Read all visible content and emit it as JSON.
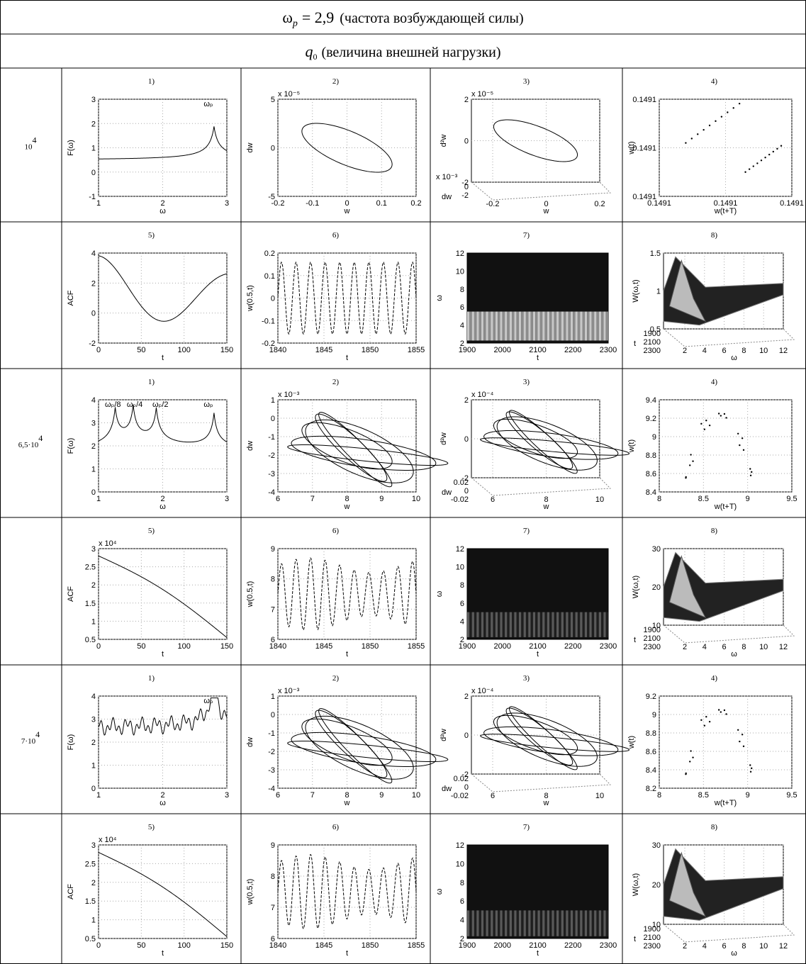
{
  "header": {
    "title": {
      "symbol": "ω",
      "sub": "p",
      "value": "= 2,9",
      "text": "(частота возбуждающей силы)"
    },
    "subtitle": {
      "symbol": "q",
      "sub": "0",
      "text": "(величина внешней нагрузки)"
    }
  },
  "rows": [
    {
      "load": {
        "base": "10",
        "exp": "4"
      },
      "panels": [
        {
          "label": "1)",
          "ylabel": "F(ω)",
          "xlabel": "ω",
          "yticks": [
            "-1",
            "0",
            "1",
            "2",
            "3"
          ],
          "xticks": [
            "1",
            "2",
            "3"
          ],
          "annotations": [
            "ωₚ"
          ]
        },
        {
          "label": "2)",
          "ylabel": "dw",
          "xlabel": "w",
          "exponent": "x 10⁻⁵",
          "yticks": [
            "-5",
            "0",
            "5"
          ],
          "xticks": [
            "-0.2",
            "-0.1",
            "0",
            "0.1",
            "0.2"
          ]
        },
        {
          "label": "3)",
          "ylabel": "d²w",
          "exponent": "x 10⁻⁵",
          "yticks": [
            "-2",
            "0",
            "2"
          ],
          "depthlabel": "dw",
          "depthexponent": "x 10⁻³",
          "depthticks": [
            "0",
            "-2"
          ],
          "xlabel": "w",
          "xticks": [
            "-0.2",
            "0",
            "0.2"
          ]
        },
        {
          "label": "4)",
          "ylabel": "w(t)",
          "xlabel": "w(t+T)",
          "yticks": [
            "0.1491",
            "0.1491",
            "0.1491"
          ],
          "xticks": [
            "0.1491",
            "0.1491",
            "0.1491"
          ]
        }
      ]
    },
    {
      "panels": [
        {
          "label": "5)",
          "ylabel": "ACF",
          "xlabel": "t",
          "yticks": [
            "-2",
            "0",
            "2",
            "4"
          ],
          "xticks": [
            "0",
            "50",
            "100",
            "150"
          ]
        },
        {
          "label": "6)",
          "ylabel": "w(0.5,t)",
          "xlabel": "t",
          "yticks": [
            "-0.2",
            "-0.1",
            "0",
            "0.1",
            "0.2"
          ],
          "xticks": [
            "1840",
            "1845",
            "1850",
            "1855"
          ]
        },
        {
          "label": "7)",
          "ylabel": "ω",
          "xlabel": "t",
          "yticks": [
            "2",
            "4",
            "6",
            "8",
            "10",
            "12"
          ],
          "xticks": [
            "1900",
            "2000",
            "2100",
            "2200",
            "2300"
          ]
        },
        {
          "label": "8)",
          "ylabel": "W(ω,t)",
          "yticks": [
            "0.5",
            "1",
            "1.5"
          ],
          "depthlabel": "t",
          "depthticks": [
            "1900",
            "2100",
            "2300"
          ],
          "xlabel": "ω",
          "xticks": [
            "2",
            "4",
            "6",
            "8",
            "10",
            "12"
          ]
        }
      ]
    },
    {
      "load": {
        "base": "6,5·10",
        "exp": "4"
      },
      "panels": [
        {
          "label": "1)",
          "ylabel": "F(ω)",
          "xlabel": "ω",
          "yticks": [
            "0",
            "1",
            "2",
            "3",
            "4"
          ],
          "xticks": [
            "1",
            "2",
            "3"
          ],
          "annotations": [
            "ωₚ/8",
            "ωₚ/4",
            "ωₚ/2",
            "ωₚ"
          ]
        },
        {
          "label": "2)",
          "ylabel": "dw",
          "xlabel": "w",
          "exponent": "x 10⁻³",
          "yticks": [
            "-4",
            "-3",
            "-2",
            "-1",
            "0",
            "1"
          ],
          "xticks": [
            "6",
            "7",
            "8",
            "9",
            "10"
          ]
        },
        {
          "label": "3)",
          "ylabel": "d²w",
          "exponent": "x 10⁻⁴",
          "yticks": [
            "-2",
            "0",
            "2"
          ],
          "depthlabel": "dw",
          "depthticks": [
            "0.02",
            "0",
            "-0.02"
          ],
          "xlabel": "w",
          "xticks": [
            "6",
            "8",
            "10"
          ]
        },
        {
          "label": "4)",
          "ylabel": "w(t)",
          "xlabel": "w(t+T)",
          "yticks": [
            "8.4",
            "8.6",
            "8.8",
            "9",
            "9.2",
            "9.4"
          ],
          "xticks": [
            "8",
            "8.5",
            "9",
            "9.5"
          ]
        }
      ]
    },
    {
      "panels": [
        {
          "label": "5)",
          "ylabel": "ACF",
          "xlabel": "t",
          "exponent": "x 10⁴",
          "yticks": [
            "0.5",
            "1",
            "1.5",
            "2",
            "2.5",
            "3"
          ],
          "xticks": [
            "0",
            "50",
            "100",
            "150"
          ]
        },
        {
          "label": "6)",
          "ylabel": "w(0.5,t)",
          "xlabel": "t",
          "yticks": [
            "6",
            "7",
            "8",
            "9"
          ],
          "xticks": [
            "1840",
            "1845",
            "1850",
            "1855"
          ]
        },
        {
          "label": "7)",
          "ylabel": "ω",
          "xlabel": "t",
          "yticks": [
            "2",
            "4",
            "6",
            "8",
            "10",
            "12"
          ],
          "xticks": [
            "1900",
            "2000",
            "2100",
            "2200",
            "2300"
          ]
        },
        {
          "label": "8)",
          "ylabel": "W(ω,t)",
          "yticks": [
            "10",
            "20",
            "30"
          ],
          "depthlabel": "t",
          "depthticks": [
            "1900",
            "2100",
            "2300"
          ],
          "xlabel": "ω",
          "xticks": [
            "2",
            "4",
            "6",
            "8",
            "10",
            "12"
          ]
        }
      ]
    },
    {
      "load": {
        "base": "7·10",
        "exp": "4"
      },
      "panels": [
        {
          "label": "1)",
          "ylabel": "F(ω)",
          "xlabel": "ω",
          "yticks": [
            "0",
            "1",
            "2",
            "3",
            "4"
          ],
          "xticks": [
            "1",
            "2",
            "3"
          ],
          "annotations": [
            "ωₚ"
          ]
        },
        {
          "label": "2)",
          "ylabel": "dw",
          "xlabel": "w",
          "exponent": "x 10⁻³",
          "yticks": [
            "-4",
            "-3",
            "-2",
            "-1",
            "0",
            "1"
          ],
          "xticks": [
            "6",
            "7",
            "8",
            "9",
            "10"
          ]
        },
        {
          "label": "3)",
          "ylabel": "d²w",
          "exponent": "x 10⁻⁴",
          "yticks": [
            "-2",
            "0",
            "2"
          ],
          "depthlabel": "dw",
          "depthticks": [
            "0.02",
            "0",
            "-0.02"
          ],
          "xlabel": "w",
          "xticks": [
            "6",
            "8",
            "10"
          ]
        },
        {
          "label": "4)",
          "ylabel": "w(t)",
          "xlabel": "w(t+T)",
          "yticks": [
            "8.2",
            "8.4",
            "8.6",
            "8.8",
            "9",
            "9.2"
          ],
          "xticks": [
            "8",
            "8.5",
            "9",
            "9.5"
          ]
        }
      ]
    },
    {
      "panels": [
        {
          "label": "5)",
          "ylabel": "ACF",
          "xlabel": "t",
          "exponent": "x 10⁴",
          "yticks": [
            "0.5",
            "1",
            "1.5",
            "2",
            "2.5",
            "3"
          ],
          "xticks": [
            "0",
            "50",
            "100",
            "150"
          ]
        },
        {
          "label": "6)",
          "ylabel": "w(0.5,t)",
          "xlabel": "t",
          "yticks": [
            "6",
            "7",
            "8",
            "9"
          ],
          "xticks": [
            "1840",
            "1845",
            "1850",
            "1855"
          ]
        },
        {
          "label": "7)",
          "ylabel": "ω",
          "xlabel": "t",
          "yticks": [
            "2",
            "4",
            "6",
            "8",
            "10",
            "12"
          ],
          "xticks": [
            "1900",
            "2000",
            "2100",
            "2200",
            "2300"
          ]
        },
        {
          "label": "8)",
          "ylabel": "W(ω,t)",
          "yticks": [
            "10",
            "20",
            "30"
          ],
          "depthlabel": "t",
          "depthticks": [
            "1900",
            "2100",
            "2300"
          ],
          "xlabel": "ω",
          "xticks": [
            "2",
            "4",
            "6",
            "8",
            "10",
            "12"
          ]
        }
      ]
    }
  ]
}
